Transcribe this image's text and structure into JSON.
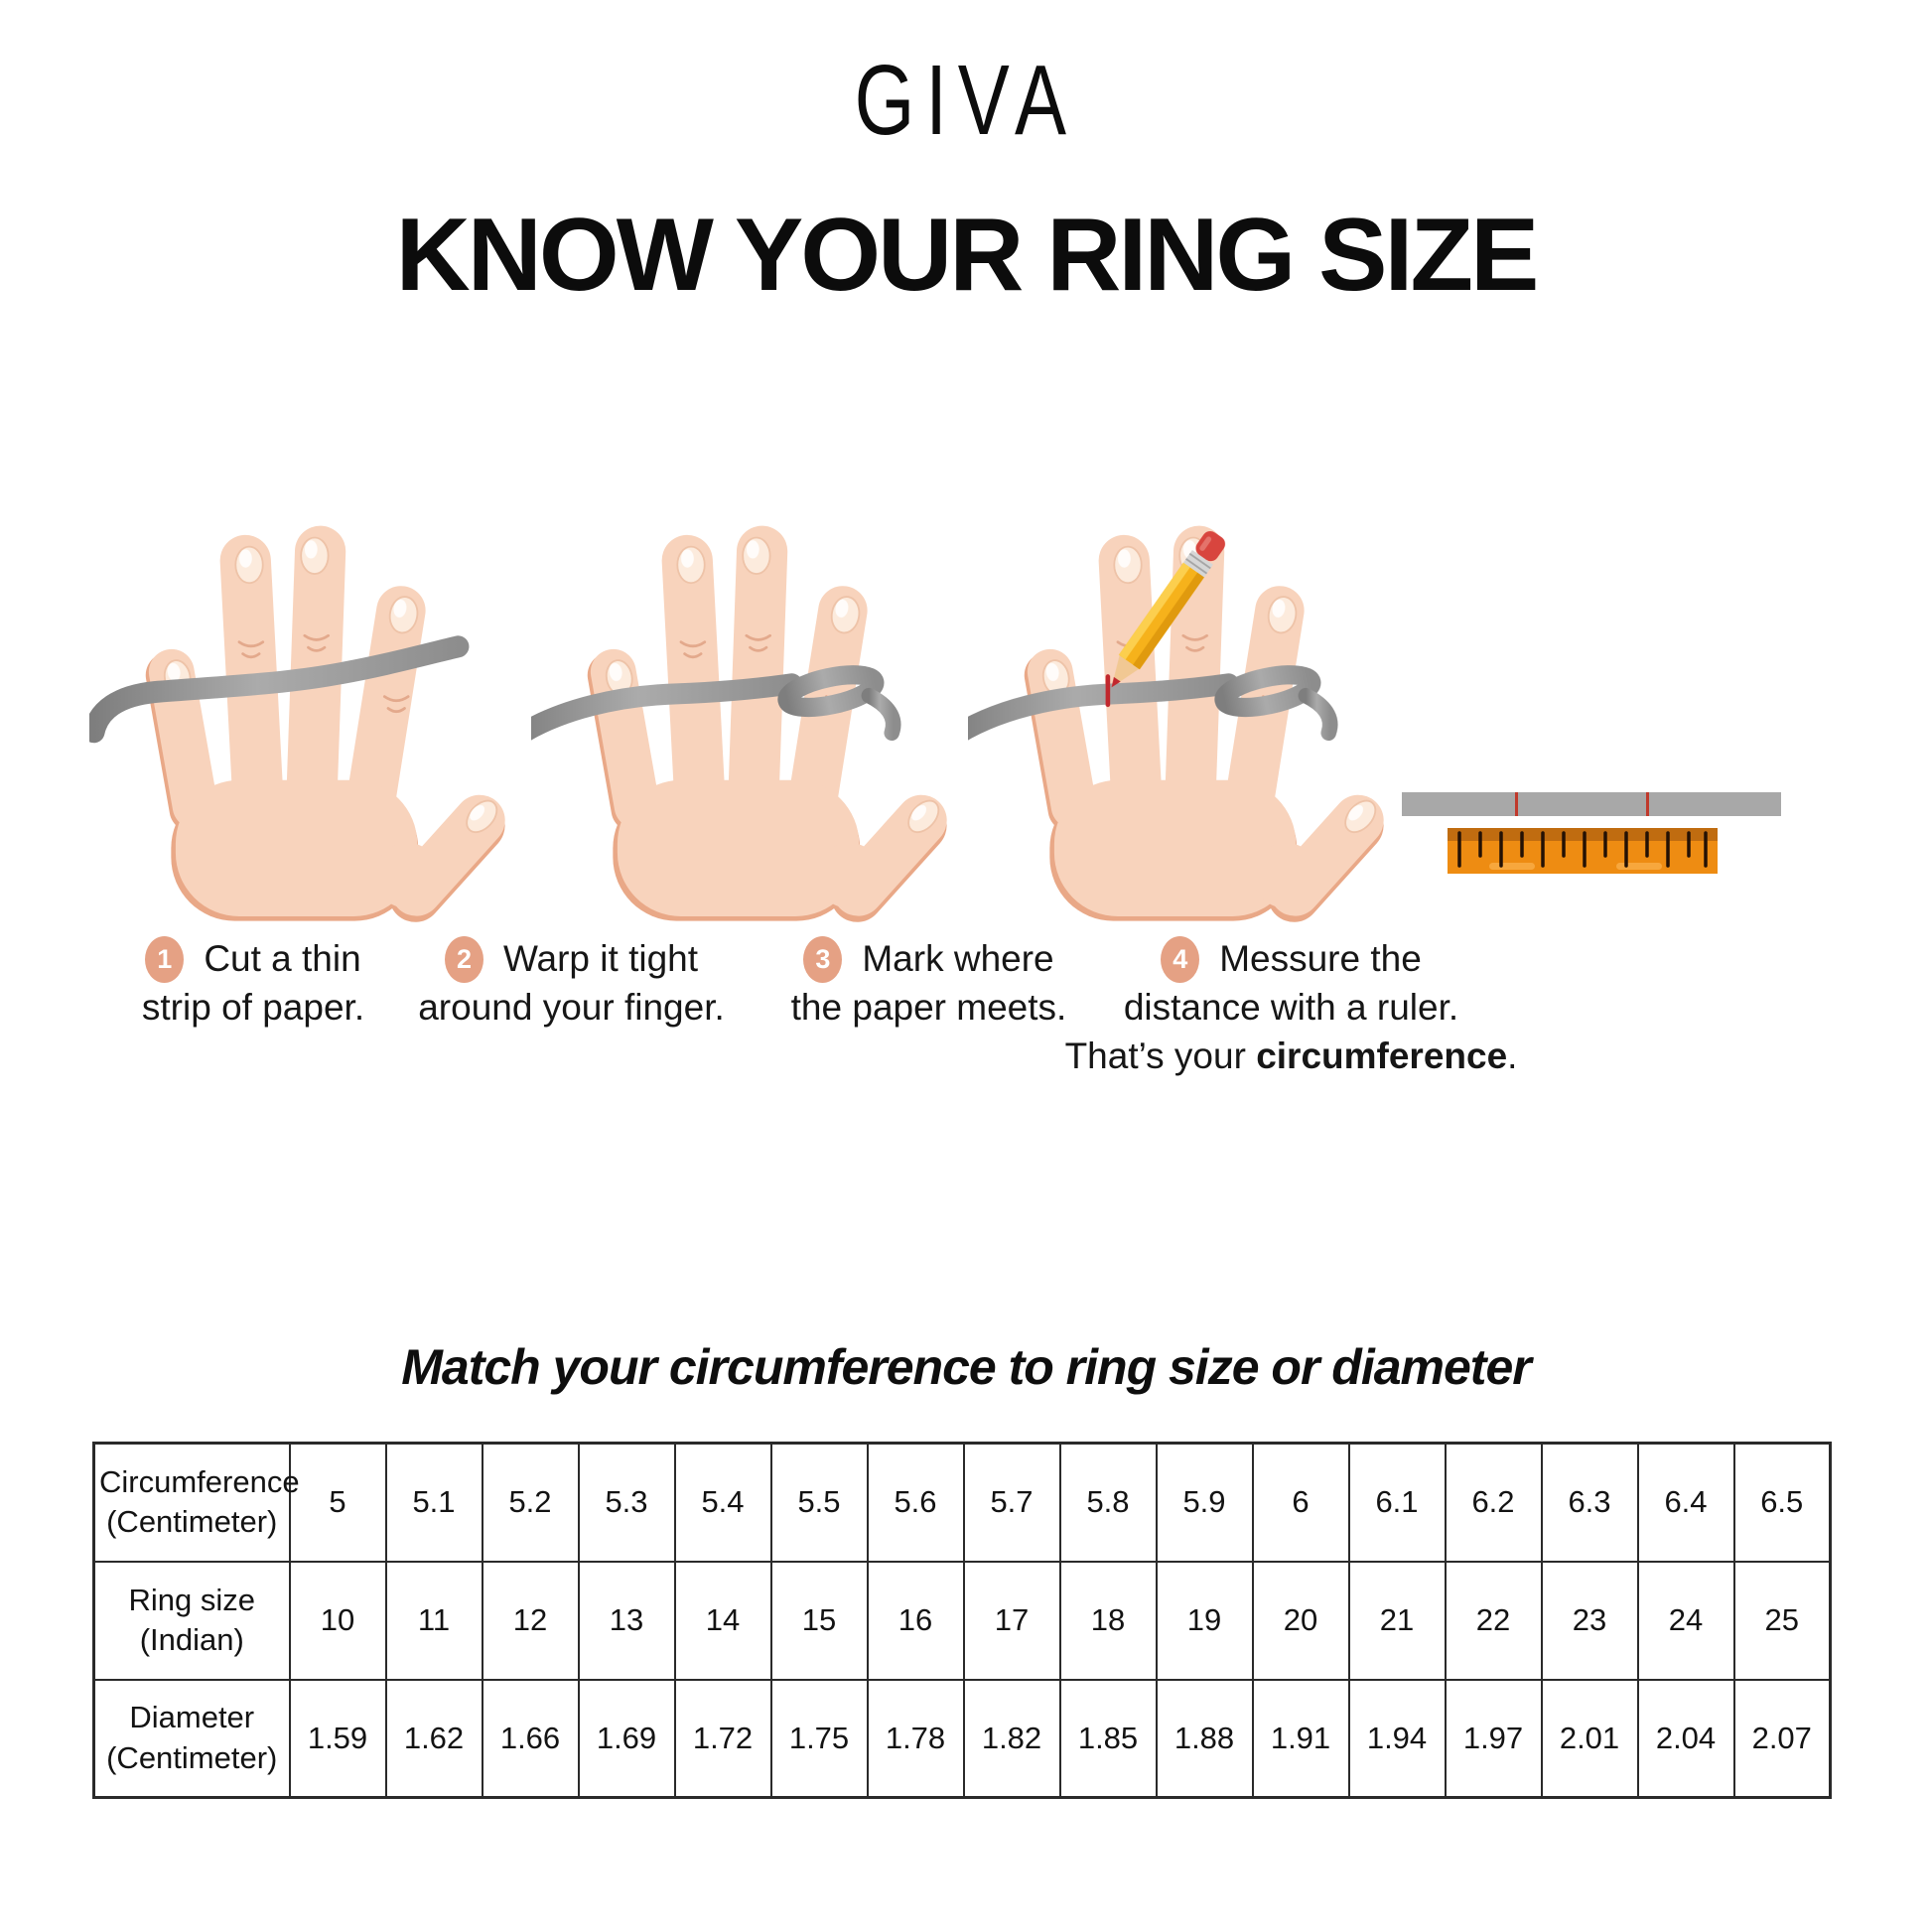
{
  "brand": "GIVA",
  "title": "KNOW YOUR RING SIZE",
  "steps": [
    {
      "number": "1",
      "lines": [
        "Cut a thin",
        "strip of paper."
      ]
    },
    {
      "number": "2",
      "lines": [
        "Warp it tight",
        "around your finger."
      ]
    },
    {
      "number": "3",
      "lines": [
        "Mark where",
        "the paper meets."
      ]
    },
    {
      "number": "4",
      "lines": [
        "Messure the",
        "distance with a ruler."
      ],
      "line3_prefix": "That’s your ",
      "line3_bold": "circumference",
      "line3_suffix": "."
    }
  ],
  "illustrations": [
    "hand-with-paper-strip",
    "hand-with-strip-wrapped-around-finger",
    "hand-with-pencil-marking-strip",
    "marked-strip-and-ruler"
  ],
  "match_heading": "Match your circumference to ring size or diameter",
  "table": {
    "rows": [
      {
        "label": [
          "Circumference",
          "(Centimeter)"
        ],
        "values": [
          "5",
          "5.1",
          "5.2",
          "5.3",
          "5.4",
          "5.5",
          "5.6",
          "5.7",
          "5.8",
          "5.9",
          "6",
          "6.1",
          "6.2",
          "6.3",
          "6.4",
          "6.5"
        ]
      },
      {
        "label": [
          "Ring size",
          "(Indian)"
        ],
        "values": [
          "10",
          "11",
          "12",
          "13",
          "14",
          "15",
          "16",
          "17",
          "18",
          "19",
          "20",
          "21",
          "22",
          "23",
          "24",
          "25"
        ]
      },
      {
        "label": [
          "Diameter",
          "(Centimeter)"
        ],
        "values": [
          "1.59",
          "1.62",
          "1.66",
          "1.69",
          "1.72",
          "1.75",
          "1.78",
          "1.82",
          "1.85",
          "1.88",
          "1.91",
          "1.94",
          "1.97",
          "2.01",
          "2.04",
          "2.07"
        ]
      }
    ]
  },
  "colors": {
    "step_circle": "#e5a184",
    "skin": "#f8d3bc",
    "skin_shade": "#e9a887",
    "strip_gray": "#9a9a9a",
    "ruler_orange": "#ee8c12",
    "ruler_band": "#c06c10",
    "mark_red": "#c1272d",
    "pencil_yellow": "#f6b21b",
    "eraser_red": "#d8453e"
  }
}
